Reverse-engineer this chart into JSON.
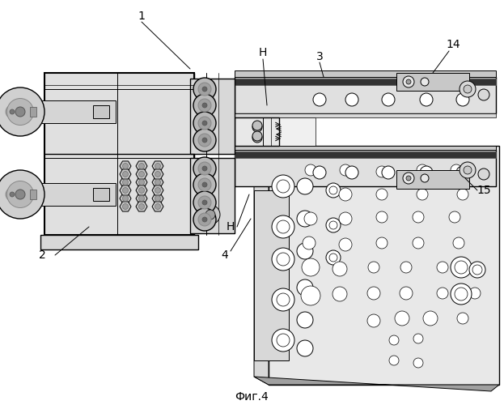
{
  "caption": "Фиг.4",
  "bg_color": "#ffffff",
  "line_color": "#000000",
  "gray1": "#c8c8c8",
  "gray2": "#a0a0a0",
  "gray3": "#d8d8d8",
  "gray4": "#e8e8e8",
  "gray5": "#707070",
  "label_fontsize": 10,
  "caption_fontsize": 10
}
